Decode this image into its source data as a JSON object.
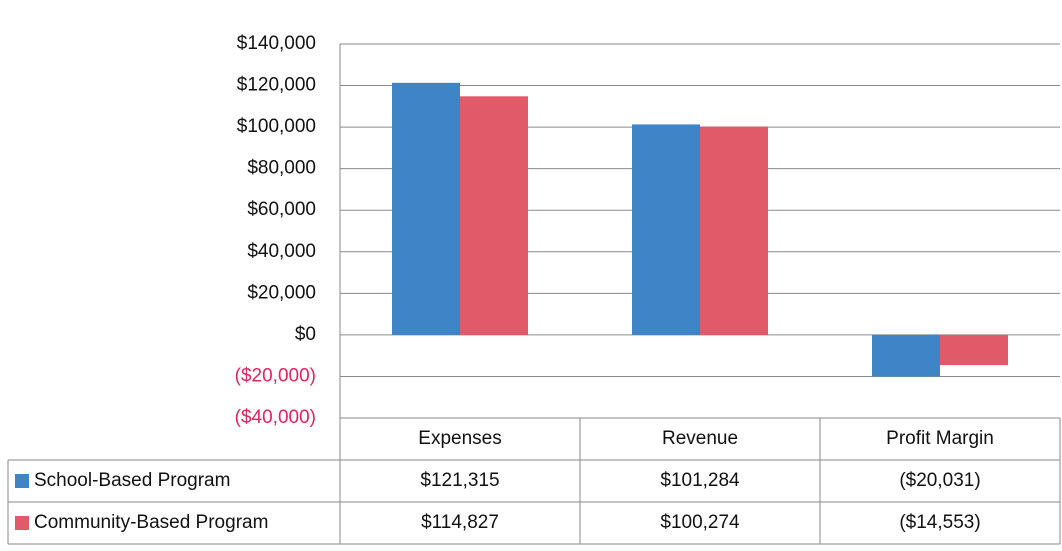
{
  "chart_data": {
    "type": "bar",
    "categories": [
      "Expenses",
      "Revenue",
      "Profit Margin"
    ],
    "series": [
      {
        "name": "School-Based Program",
        "color": "#3d85c6",
        "values": [
          121315,
          101284,
          -20031
        ],
        "value_labels": [
          "$121,315",
          "$101,284",
          "($20,031)"
        ]
      },
      {
        "name": "Community-Based Program",
        "color": "#e05a6a",
        "values": [
          114827,
          100274,
          -14553
        ],
        "value_labels": [
          "$114,827",
          "$100,274",
          "($14,553)"
        ]
      }
    ],
    "ylim": [
      -40000,
      140000
    ],
    "yticks": [
      {
        "value": -40000,
        "label": "($40,000)"
      },
      {
        "value": -20000,
        "label": "($20,000)"
      },
      {
        "value": 0,
        "label": "$0"
      },
      {
        "value": 20000,
        "label": "$20,000"
      },
      {
        "value": 40000,
        "label": "$40,000"
      },
      {
        "value": 60000,
        "label": "$60,000"
      },
      {
        "value": 80000,
        "label": "$80,000"
      },
      {
        "value": 100000,
        "label": "$100,000"
      },
      {
        "value": 120000,
        "label": "$120,000"
      },
      {
        "value": 140000,
        "label": "$140,000"
      }
    ],
    "grid": true,
    "negative_tick_color": "#e0245e",
    "data_table": true
  }
}
